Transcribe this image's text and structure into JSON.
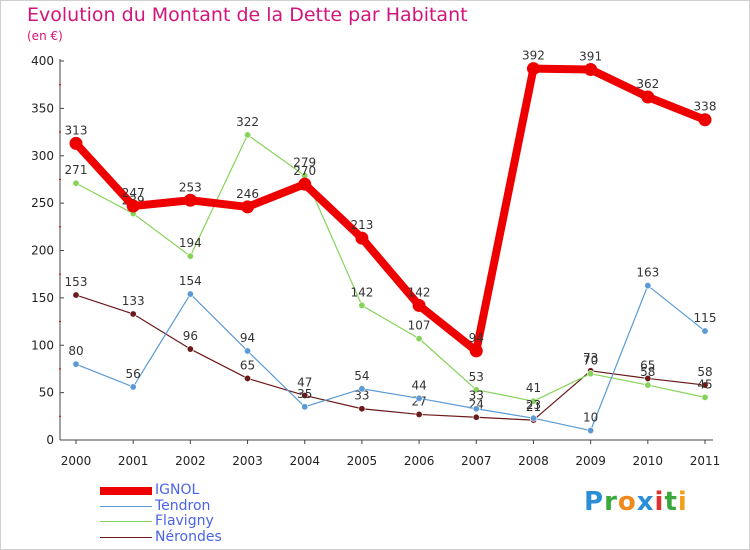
{
  "title": "Evolution du Montant de la Dette par Habitant",
  "unit_label": "(en €)",
  "logo": {
    "letters": [
      "P",
      "r",
      "o",
      "x",
      "i",
      "t",
      "i"
    ],
    "colors": [
      "#2a8fd6",
      "#3aa83a",
      "#f08a1c",
      "#2a8fd6",
      "#e03030",
      "#3aa83a",
      "#f0a01c"
    ]
  },
  "chart_data": {
    "type": "line",
    "x": [
      "2000",
      "2001",
      "2002",
      "2003",
      "2004",
      "2005",
      "2006",
      "2007",
      "2008",
      "2009",
      "2010",
      "2011"
    ],
    "ylim": [
      0,
      400
    ],
    "yticks": [
      "0",
      "50",
      "100",
      "150",
      "200",
      "250",
      "300",
      "350",
      "400"
    ],
    "grid": false,
    "legend_position": "bottom-left",
    "series": [
      {
        "name": "Nérondes",
        "color": "#6b1a1a",
        "values": [
          153,
          133,
          96,
          65,
          47,
          33,
          27,
          24,
          21,
          73,
          65,
          58
        ],
        "labels": [
          "153",
          "133",
          "96",
          "65",
          "47",
          "33",
          "27",
          "24",
          "21",
          "73",
          "65",
          "58"
        ]
      },
      {
        "name": "Flavigny",
        "color": "#86d35a",
        "values": [
          271,
          239,
          194,
          322,
          279,
          142,
          107,
          53,
          41,
          70,
          58,
          45
        ],
        "labels": [
          "271",
          "239",
          "194",
          "322",
          "279",
          "142",
          "107",
          "53",
          "41",
          "70",
          "58",
          "45"
        ]
      },
      {
        "name": "Tendron",
        "color": "#5b9ad6",
        "values": [
          80,
          56,
          154,
          94,
          35,
          54,
          44,
          33,
          23,
          10,
          163,
          115
        ],
        "labels": [
          "80",
          "56",
          "154",
          "94",
          "35",
          "54",
          "44",
          "33",
          "23",
          "10",
          "163",
          "115"
        ]
      },
      {
        "name": "IGNOL",
        "color": "#ee0000",
        "values": [
          313,
          247,
          253,
          246,
          270,
          213,
          142,
          94,
          392,
          391,
          362,
          338
        ],
        "labels": [
          "313",
          "247",
          "253",
          "246",
          "270",
          "213",
          "142",
          "94",
          "392",
          "391",
          "362",
          "338"
        ]
      }
    ],
    "legend": [
      "IGNOL",
      "Tendron",
      "Flavigny",
      "Nérondes"
    ]
  }
}
